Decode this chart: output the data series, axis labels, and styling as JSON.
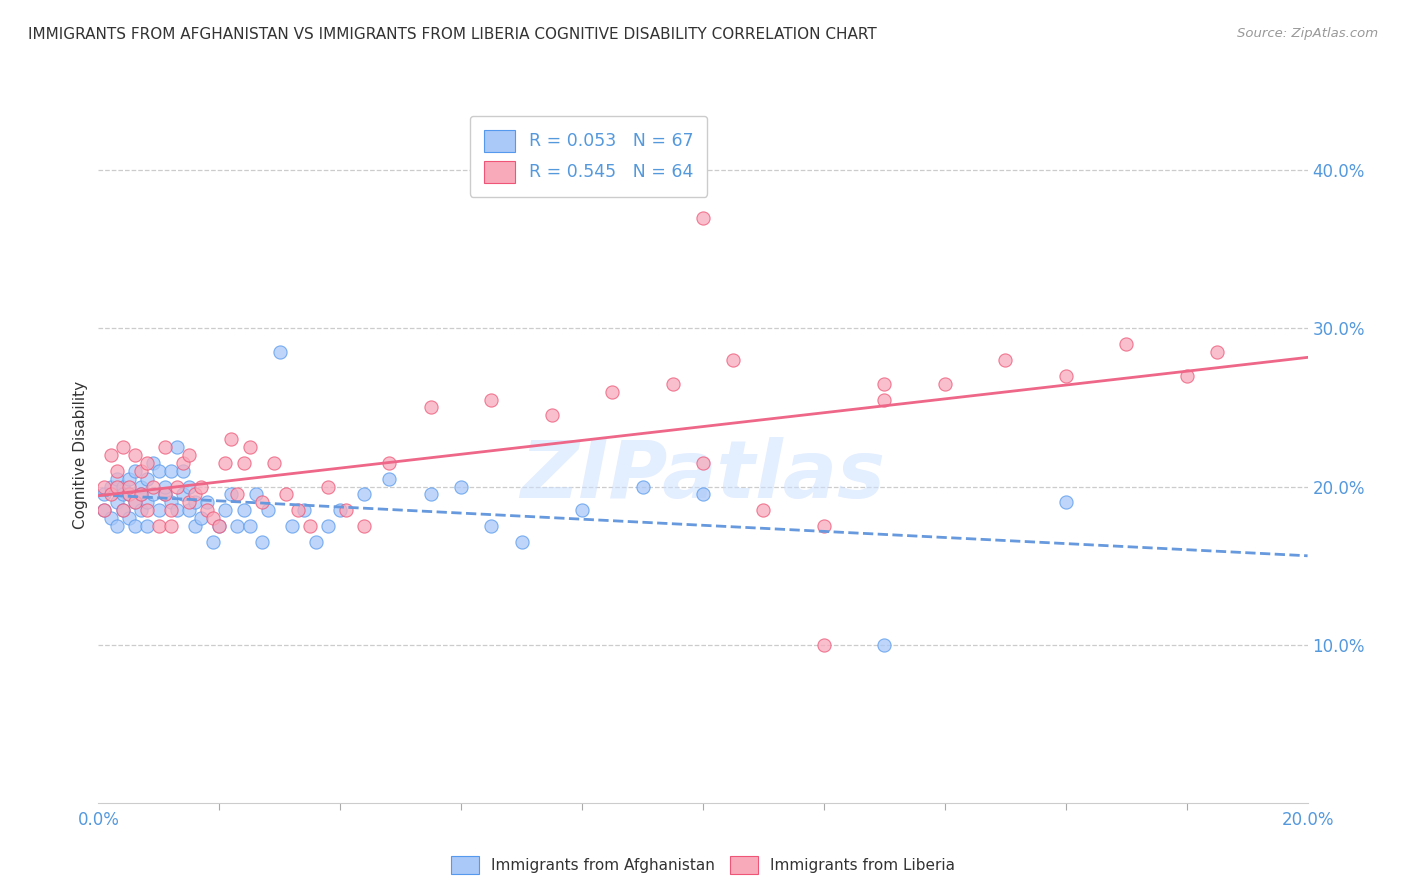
{
  "title": "IMMIGRANTS FROM AFGHANISTAN VS IMMIGRANTS FROM LIBERIA COGNITIVE DISABILITY CORRELATION CHART",
  "source": "Source: ZipAtlas.com",
  "ylabel": "Cognitive Disability",
  "ytick_values": [
    0.1,
    0.2,
    0.3,
    0.4
  ],
  "xtick_minor_count": 10,
  "xlim": [
    0.0,
    0.2
  ],
  "ylim": [
    0.0,
    0.44
  ],
  "afghanistan_color": "#aac8f8",
  "liberia_color": "#f8aabb",
  "afghanistan_edge_color": "#5599ee",
  "liberia_edge_color": "#ee5577",
  "afghanistan_line_color": "#6699dd",
  "liberia_line_color": "#ee6688",
  "R_afghanistan": 0.053,
  "N_afghanistan": 67,
  "R_liberia": 0.545,
  "N_liberia": 64,
  "legend_label_afghanistan": "Immigrants from Afghanistan",
  "legend_label_liberia": "Immigrants from Liberia",
  "watermark": "ZIPatlas",
  "afghanistan_x": [
    0.001,
    0.001,
    0.002,
    0.002,
    0.003,
    0.003,
    0.003,
    0.004,
    0.004,
    0.004,
    0.005,
    0.005,
    0.005,
    0.006,
    0.006,
    0.006,
    0.007,
    0.007,
    0.007,
    0.008,
    0.008,
    0.008,
    0.009,
    0.009,
    0.01,
    0.01,
    0.011,
    0.011,
    0.012,
    0.012,
    0.013,
    0.013,
    0.014,
    0.014,
    0.015,
    0.015,
    0.016,
    0.016,
    0.017,
    0.018,
    0.019,
    0.02,
    0.021,
    0.022,
    0.023,
    0.024,
    0.025,
    0.026,
    0.027,
    0.028,
    0.03,
    0.032,
    0.034,
    0.036,
    0.038,
    0.04,
    0.044,
    0.048,
    0.055,
    0.06,
    0.065,
    0.07,
    0.08,
    0.09,
    0.1,
    0.13,
    0.16
  ],
  "afghanistan_y": [
    0.195,
    0.185,
    0.18,
    0.2,
    0.19,
    0.175,
    0.205,
    0.185,
    0.2,
    0.195,
    0.18,
    0.195,
    0.205,
    0.175,
    0.19,
    0.21,
    0.2,
    0.185,
    0.195,
    0.175,
    0.19,
    0.205,
    0.215,
    0.195,
    0.21,
    0.185,
    0.195,
    0.2,
    0.19,
    0.21,
    0.225,
    0.185,
    0.195,
    0.21,
    0.2,
    0.185,
    0.175,
    0.19,
    0.18,
    0.19,
    0.165,
    0.175,
    0.185,
    0.195,
    0.175,
    0.185,
    0.175,
    0.195,
    0.165,
    0.185,
    0.285,
    0.175,
    0.185,
    0.165,
    0.175,
    0.185,
    0.195,
    0.205,
    0.195,
    0.2,
    0.175,
    0.165,
    0.185,
    0.2,
    0.195,
    0.1,
    0.19
  ],
  "liberia_x": [
    0.001,
    0.001,
    0.002,
    0.002,
    0.003,
    0.003,
    0.004,
    0.004,
    0.005,
    0.005,
    0.006,
    0.006,
    0.007,
    0.007,
    0.008,
    0.008,
    0.009,
    0.01,
    0.011,
    0.011,
    0.012,
    0.012,
    0.013,
    0.014,
    0.015,
    0.015,
    0.016,
    0.017,
    0.018,
    0.019,
    0.02,
    0.021,
    0.022,
    0.023,
    0.024,
    0.025,
    0.027,
    0.029,
    0.031,
    0.033,
    0.035,
    0.038,
    0.041,
    0.044,
    0.048,
    0.055,
    0.065,
    0.075,
    0.085,
    0.095,
    0.1,
    0.11,
    0.12,
    0.13,
    0.14,
    0.15,
    0.16,
    0.17,
    0.18,
    0.185,
    0.1,
    0.105,
    0.12,
    0.13
  ],
  "liberia_y": [
    0.2,
    0.185,
    0.22,
    0.195,
    0.21,
    0.2,
    0.225,
    0.185,
    0.195,
    0.2,
    0.19,
    0.22,
    0.21,
    0.195,
    0.185,
    0.215,
    0.2,
    0.175,
    0.195,
    0.225,
    0.185,
    0.175,
    0.2,
    0.215,
    0.22,
    0.19,
    0.195,
    0.2,
    0.185,
    0.18,
    0.175,
    0.215,
    0.23,
    0.195,
    0.215,
    0.225,
    0.19,
    0.215,
    0.195,
    0.185,
    0.175,
    0.2,
    0.185,
    0.175,
    0.215,
    0.25,
    0.255,
    0.245,
    0.26,
    0.265,
    0.215,
    0.185,
    0.1,
    0.255,
    0.265,
    0.28,
    0.27,
    0.29,
    0.27,
    0.285,
    0.37,
    0.28,
    0.175,
    0.265
  ]
}
